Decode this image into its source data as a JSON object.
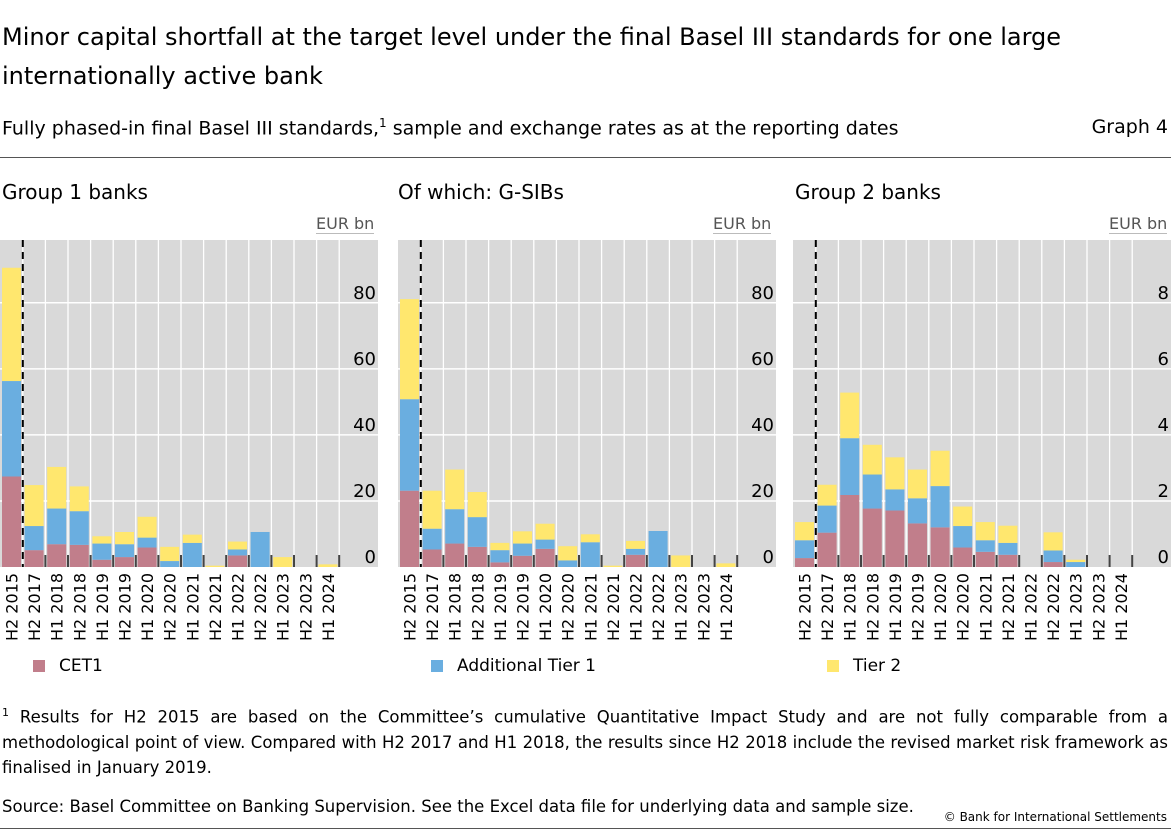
{
  "header": {
    "title": "Minor capital shortfall at the target level under the final Basel III standards for one large internationally active bank",
    "subtitle_pre": "Fully phased-in final Basel III standards,",
    "subtitle_sup": "1",
    "subtitle_post": " sample and exchange rates as at the reporting dates",
    "graph_number": "Graph 4"
  },
  "colors": {
    "CET1": "#c17e8b",
    "Additional Tier 1": "#6aaee0",
    "Tier 2": "#ffe76e",
    "plot_bg": "#d9d9d9"
  },
  "chart_data": [
    {
      "type": "bar",
      "stacked": true,
      "title": "Group 1 banks",
      "ylabel": "EUR bn",
      "ylim": [
        0,
        99
      ],
      "yticks": [
        0,
        20,
        40,
        60,
        80
      ],
      "grid": true,
      "axis_side": "right",
      "dashed_divider_after": "H2 2015",
      "categories": [
        "H2 2015",
        "H2 2017",
        "H1 2018",
        "H2 2018",
        "H1 2019",
        "H2 2019",
        "H1 2020",
        "H2 2020",
        "H1 2021",
        "H2 2021",
        "H1 2022",
        "H2 2022",
        "H1 2023",
        "H2 2023",
        "H1 2024"
      ],
      "legend": {
        "label": "CET1",
        "series": "CET1"
      },
      "series": [
        {
          "name": "CET1",
          "values": [
            27.4,
            5.1,
            6.9,
            6.7,
            2.2,
            3.0,
            5.9,
            0,
            0,
            0,
            3.5,
            0,
            0,
            0,
            0
          ]
        },
        {
          "name": "Additional Tier 1",
          "values": [
            28.9,
            7.3,
            10.8,
            10.2,
            4.9,
            3.9,
            3.0,
            1.8,
            7.3,
            0,
            1.8,
            10.6,
            0,
            0,
            0
          ]
        },
        {
          "name": "Tier 2",
          "values": [
            34.3,
            12.4,
            12.6,
            7.5,
            2.2,
            3.7,
            6.3,
            4.3,
            2.5,
            0.4,
            2.4,
            0,
            3.0,
            0,
            0.8
          ]
        }
      ]
    },
    {
      "type": "bar",
      "stacked": true,
      "title": "Of which: G-SIBs",
      "ylabel": "EUR bn",
      "ylim": [
        0,
        99
      ],
      "yticks": [
        0,
        20,
        40,
        60,
        80
      ],
      "grid": true,
      "axis_side": "right",
      "dashed_divider_after": "H2 2015",
      "categories": [
        "H2 2015",
        "H2 2017",
        "H1 2018",
        "H2 2018",
        "H1 2019",
        "H2 2019",
        "H1 2020",
        "H2 2020",
        "H1 2021",
        "H2 2021",
        "H1 2022",
        "H2 2022",
        "H1 2023",
        "H2 2023",
        "H1 2024"
      ],
      "legend": {
        "label": "Additional Tier 1",
        "series": "Additional Tier 1"
      },
      "series": [
        {
          "name": "CET1",
          "values": [
            23.1,
            5.3,
            7.1,
            6.1,
            1.4,
            3.4,
            5.5,
            0,
            0,
            0,
            3.7,
            0,
            0,
            0,
            0
          ]
        },
        {
          "name": "Additional Tier 1",
          "values": [
            27.7,
            6.3,
            10.4,
            9.0,
            3.7,
            3.7,
            2.8,
            2.0,
            7.5,
            0,
            1.8,
            10.9,
            0,
            0,
            0
          ]
        },
        {
          "name": "Tier 2",
          "values": [
            30.3,
            11.5,
            12.0,
            7.6,
            2.2,
            3.7,
            4.8,
            4.3,
            2.4,
            0.4,
            2.4,
            0,
            3.5,
            0,
            1.1
          ]
        }
      ]
    },
    {
      "type": "bar",
      "stacked": true,
      "title": "Group 2 banks",
      "ylabel": "EUR bn",
      "ylim": [
        0,
        9.9
      ],
      "yticks": [
        0,
        2,
        4,
        6,
        8
      ],
      "grid": true,
      "axis_side": "right",
      "dashed_divider_after": "H2 2015",
      "categories": [
        "H2 2015",
        "H2 2017",
        "H1 2018",
        "H2 2018",
        "H1 2019",
        "H2 2019",
        "H1 2020",
        "H2 2020",
        "H1 2021",
        "H2 2021",
        "H1 2022",
        "H2 2022",
        "H1 2023",
        "H2 2023",
        "H1 2024"
      ],
      "legend": {
        "label": "Tier 2",
        "series": "Tier 2"
      },
      "series": [
        {
          "name": "CET1",
          "values": [
            0.27,
            1.04,
            2.18,
            1.77,
            1.71,
            1.32,
            1.2,
            0.59,
            0.46,
            0.37,
            0,
            0.15,
            0,
            0,
            0
          ]
        },
        {
          "name": "Additional Tier 1",
          "values": [
            0.54,
            0.82,
            1.72,
            1.03,
            0.64,
            0.76,
            1.25,
            0.65,
            0.35,
            0.36,
            0,
            0.35,
            0.15,
            0,
            0
          ]
        },
        {
          "name": "Tier 2",
          "values": [
            0.55,
            0.63,
            1.38,
            0.9,
            0.97,
            0.87,
            1.07,
            0.59,
            0.55,
            0.52,
            0,
            0.55,
            0.07,
            0,
            0
          ]
        }
      ]
    }
  ],
  "footer": {
    "footnote_sup": "1",
    "footnote": " Results for H2 2015 are based on the Committee’s cumulative Quantitative Impact Study and are not fully comparable from a methodological point of view. Compared with H2 2017 and H1 2018, the results since H2 2018 include the revised market risk framework as finalised in January 2019.",
    "source": "Source: Basel Committee on Banking Supervision. See the Excel data file for underlying data and sample size.",
    "copyright": "© Bank for International Settlements"
  }
}
